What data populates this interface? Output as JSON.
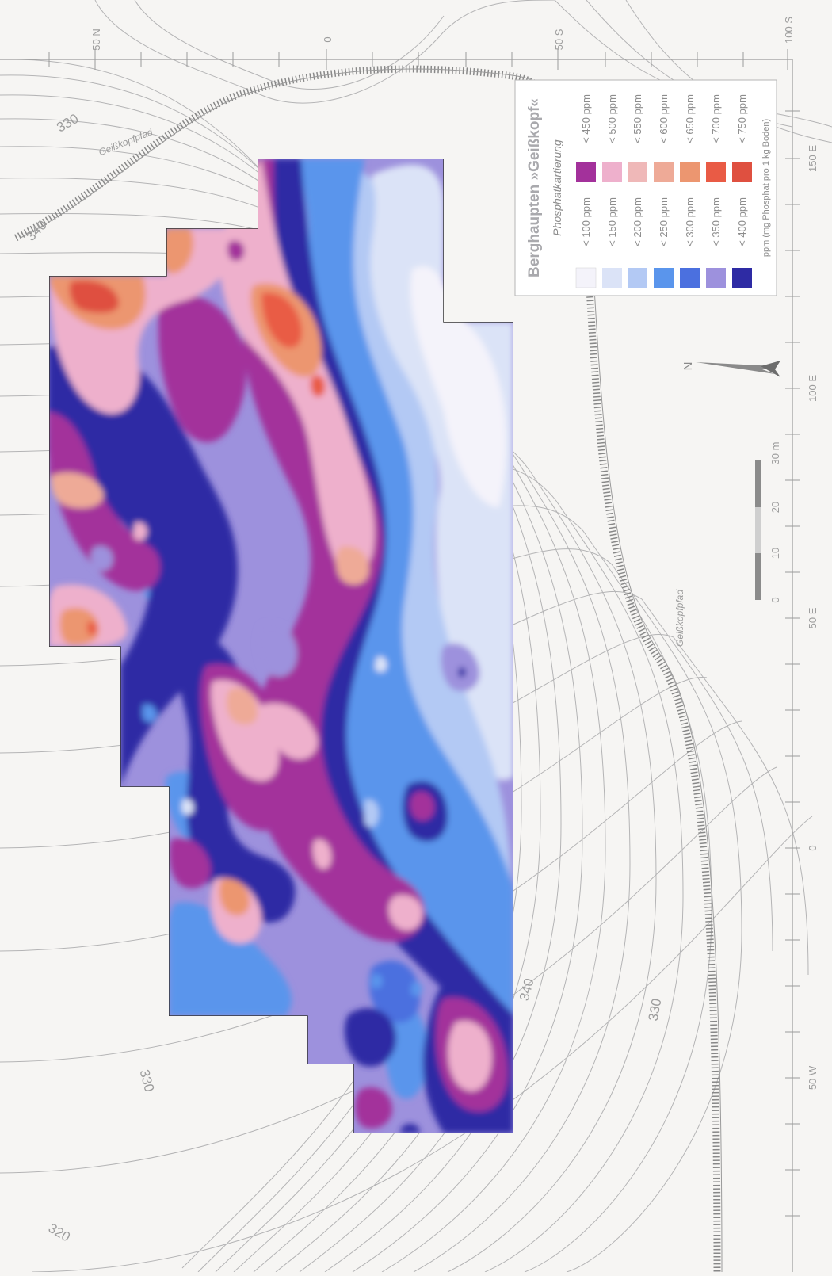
{
  "map": {
    "title": "Berghaupten »Geißkopf«",
    "subtitle": "Phosphatkartierung",
    "unit_note": "ppm (mg Phosphat pro 1 kg Boden)",
    "orientation": "rotated 90° clockwise; north arrow points left",
    "north_label": "N",
    "path_label": "Geißkopfpfad",
    "contour_labels": [
      "330",
      "340",
      "330",
      "340",
      "330",
      "320"
    ],
    "grid_left_labels": [
      "50 N",
      "0",
      "50 S",
      "100 S"
    ],
    "grid_bottom_labels": [
      "150 E",
      "100 E",
      "50 E",
      "0",
      "50 W"
    ],
    "scale_bar": {
      "ticks": [
        "0",
        "10",
        "20",
        "30 m"
      ]
    },
    "legend": {
      "left_column": [
        {
          "label": "< 100 ppm",
          "color": "#f4f3fa"
        },
        {
          "label": "< 150 ppm",
          "color": "#dbe3f7"
        },
        {
          "label": "< 200 ppm",
          "color": "#b3c9f4"
        },
        {
          "label": "< 250 ppm",
          "color": "#5a95ec"
        },
        {
          "label": "< 300 ppm",
          "color": "#4b70df"
        },
        {
          "label": "< 350 ppm",
          "color": "#9d91dd"
        },
        {
          "label": "< 400 ppm",
          "color": "#2e2ba4"
        }
      ],
      "right_column": [
        {
          "label": "< 450 ppm",
          "color": "#a3319b"
        },
        {
          "label": "< 500 ppm",
          "color": "#eeb0cc"
        },
        {
          "label": "< 550 ppm",
          "color": "#efb8b8"
        },
        {
          "label": "< 600 ppm",
          "color": "#eeaa97"
        },
        {
          "label": "< 650 ppm",
          "color": "#ec9670"
        },
        {
          "label": "< 700 ppm",
          "color": "#e95b45"
        },
        {
          "label": "< 750 ppm",
          "color": "#df5040"
        }
      ]
    }
  }
}
